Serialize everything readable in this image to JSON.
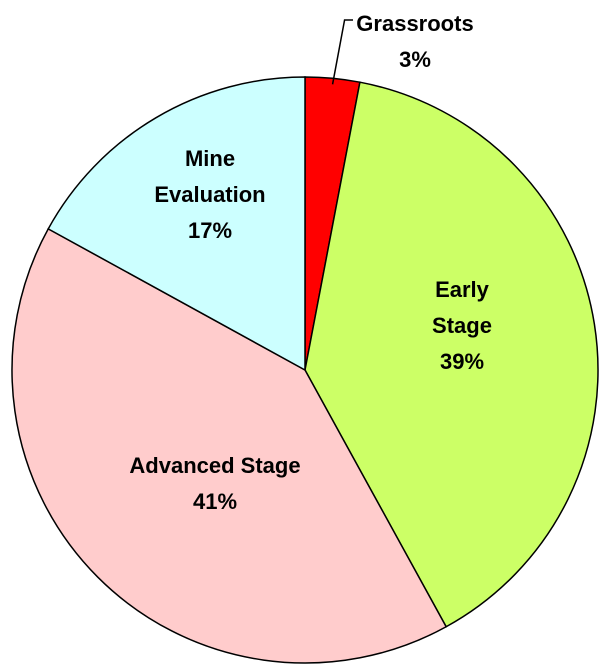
{
  "chart_data": {
    "type": "pie",
    "categories": [
      "Grassroots",
      "Early Stage",
      "Advanced Stage",
      "Mine Evaluation"
    ],
    "values": [
      3,
      39,
      41,
      17
    ],
    "value_labels": [
      "3%",
      "39%",
      "41%",
      "17%"
    ],
    "colors": [
      "#ff0000",
      "#ccff66",
      "#ffcccc",
      "#ccffff"
    ]
  }
}
